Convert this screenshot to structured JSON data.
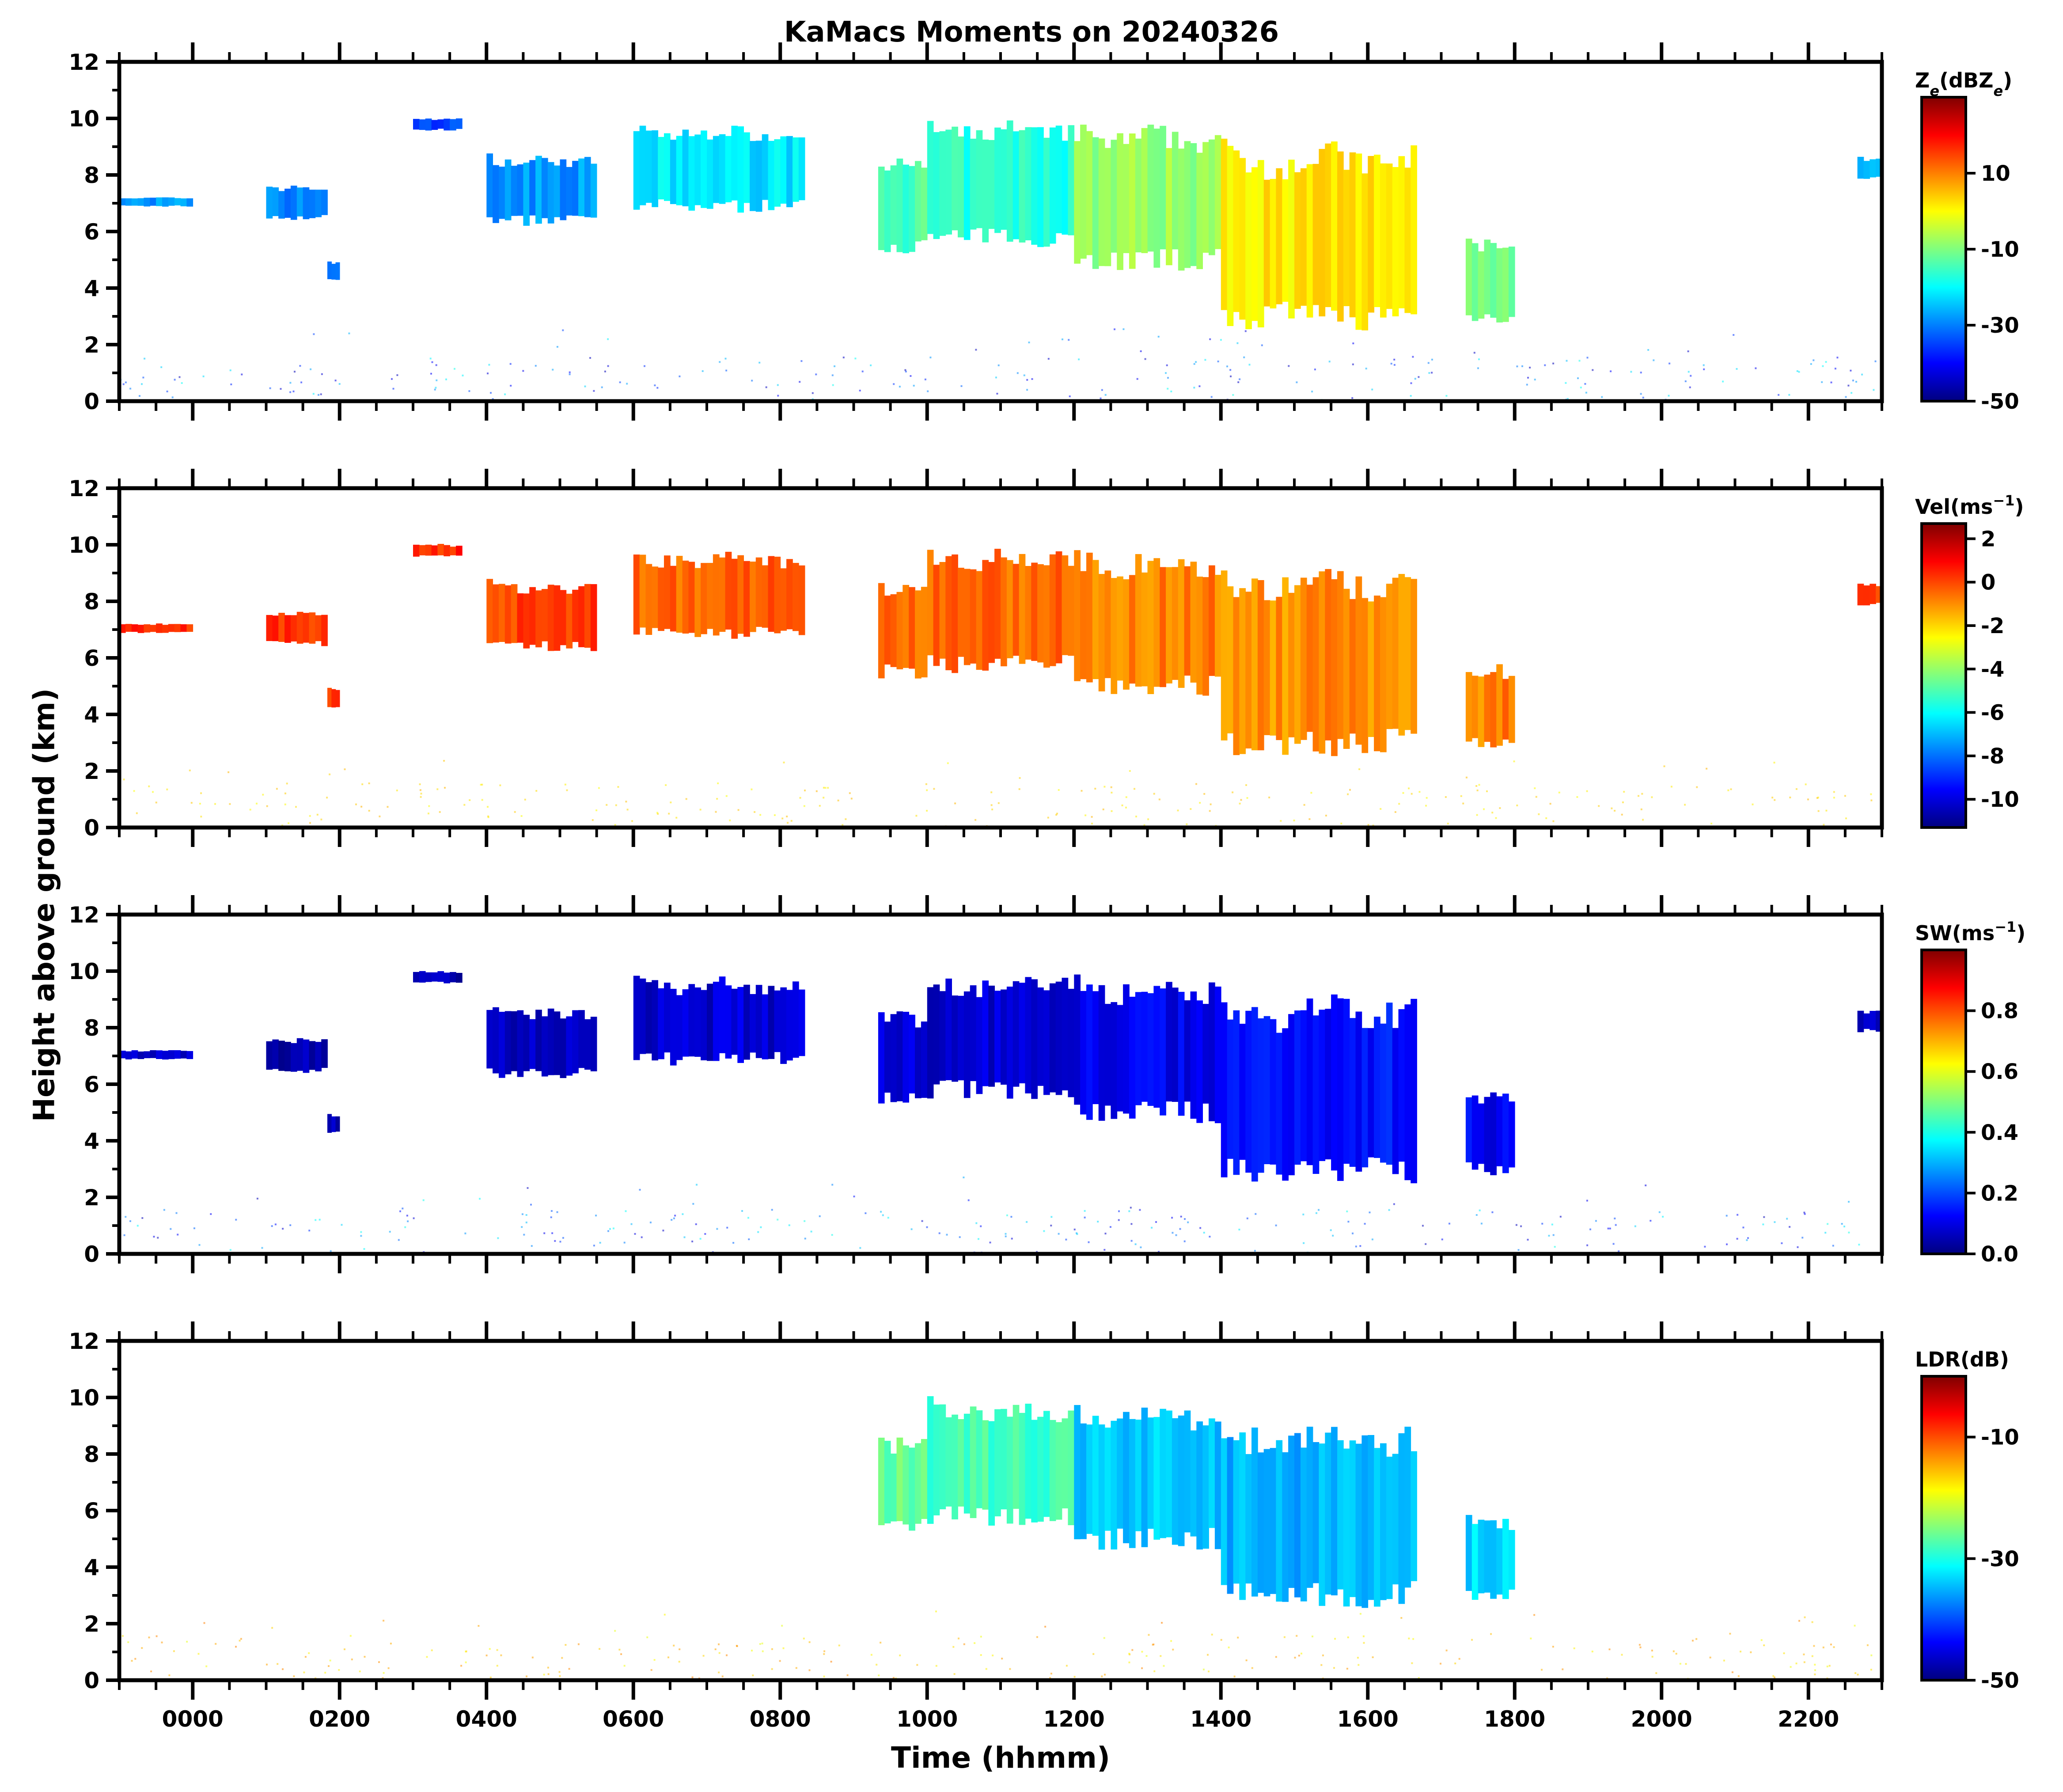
{
  "title": "KaMacs Moments on 20240326",
  "ylabel": "Height above ground (km)",
  "xlabel": "Time (hhmm)",
  "chart_data": {
    "type": "heatmap",
    "x_unit": "hhmm",
    "x_range": [
      "-0100",
      "2300"
    ],
    "x_ticks": [
      "0000",
      "0200",
      "0400",
      "0600",
      "0800",
      "1000",
      "1200",
      "1400",
      "1600",
      "1800",
      "2000",
      "2200"
    ],
    "y_range": [
      0,
      12
    ],
    "y_ticks": [
      "0",
      "2",
      "4",
      "6",
      "8",
      "10",
      "12"
    ],
    "panels": [
      {
        "id": "ze",
        "colorbar_label": "Z_e (dBZ_e)",
        "colorbar_label_parts": [
          "Z",
          "e",
          "(dBZ",
          "e",
          ")"
        ],
        "colorbar_range": [
          -50,
          30
        ],
        "colorbar_ticks": [
          "10",
          "-10",
          "-30",
          "-50"
        ],
        "colorbar_tick_values": [
          10,
          -10,
          -30,
          -50
        ]
      },
      {
        "id": "vel",
        "colorbar_label": "Vel(ms⁻¹)",
        "colorbar_label_parts": [
          "Vel(ms",
          "−1",
          ")"
        ],
        "colorbar_range": [
          -11.3,
          2.7
        ],
        "colorbar_ticks": [
          "2",
          "0",
          "-2",
          "-4",
          "-6",
          "-8",
          "-10"
        ],
        "colorbar_tick_values": [
          2,
          0,
          -2,
          -4,
          -6,
          -8,
          -10
        ]
      },
      {
        "id": "sw",
        "colorbar_label": "SW(ms⁻¹)",
        "colorbar_label_parts": [
          "SW(ms",
          "−1",
          ")"
        ],
        "colorbar_range": [
          0,
          1
        ],
        "colorbar_ticks": [
          "0.8",
          "0.6",
          "0.4",
          "0.2",
          "0.0"
        ],
        "colorbar_tick_values": [
          0.8,
          0.6,
          0.4,
          0.2,
          0.0
        ]
      },
      {
        "id": "ldr",
        "colorbar_label": "LDR(dB)",
        "colorbar_label_parts": [
          "LDR(dB)"
        ],
        "colorbar_range": [
          -50,
          0
        ],
        "colorbar_ticks": [
          "-10",
          "-30",
          "-50"
        ],
        "colorbar_tick_values": [
          -10,
          -30,
          -50
        ]
      }
    ],
    "echoes_hhmm_km": [
      {
        "t0": -100,
        "t1": -40,
        "bottom": 6.9,
        "top": 7.2,
        "ze": -28,
        "vel": 0.3,
        "sw": 0.06
      },
      {
        "t0": 100,
        "t1": 150,
        "bottom": 6.5,
        "top": 7.6,
        "ze": -30,
        "vel": 0.3,
        "sw": 0.05
      },
      {
        "t0": 150,
        "t1": 200,
        "bottom": 4.3,
        "top": 4.9,
        "ze": -32,
        "vel": 0.4,
        "sw": 0.05
      },
      {
        "t0": 300,
        "t1": 340,
        "bottom": 9.6,
        "top": 10.0,
        "ze": -35,
        "vel": 0.4,
        "sw": 0.05
      },
      {
        "t0": 400,
        "t1": 530,
        "bottom": 6.4,
        "top": 8.6,
        "ze": -28,
        "vel": 0.1,
        "sw": 0.06
      },
      {
        "t0": 600,
        "t1": 820,
        "bottom": 6.9,
        "top": 9.6,
        "ze": -22,
        "vel": -0.4,
        "sw": 0.08
      },
      {
        "t0": 920,
        "t1": 1000,
        "bottom": 5.5,
        "top": 8.5,
        "ze": -14,
        "vel": -0.6,
        "sw": 0.09,
        "ldr": -26
      },
      {
        "t0": 1000,
        "t1": 1200,
        "bottom": 5.8,
        "top": 9.7,
        "ze": -17,
        "vel": -0.5,
        "sw": 0.08,
        "ldr": -28
      },
      {
        "t0": 1200,
        "t1": 1400,
        "bottom": 5.0,
        "top": 9.5,
        "ze": -8,
        "vel": -0.8,
        "sw": 0.11,
        "ldr": -34
      },
      {
        "t0": 1400,
        "t1": 1640,
        "bottom": 3.0,
        "top": 8.8,
        "ze": 2,
        "vel": -1.0,
        "sw": 0.14,
        "ldr": -35
      },
      {
        "t0": 1720,
        "t1": 1800,
        "bottom": 3.0,
        "top": 5.7,
        "ze": -10,
        "vel": -0.8,
        "sw": 0.12,
        "ldr": -33
      },
      {
        "t0": 2240,
        "t1": 2300,
        "bottom": 7.9,
        "top": 8.6,
        "ze": -25,
        "vel": 0.2,
        "sw": 0.06
      }
    ]
  },
  "colors": {
    "axes": "#000000",
    "jet": [
      "#00007f",
      "#0000ff",
      "#007fff",
      "#00ffff",
      "#7fff7f",
      "#ffff00",
      "#ff7f00",
      "#ff0000",
      "#7f0000"
    ]
  }
}
